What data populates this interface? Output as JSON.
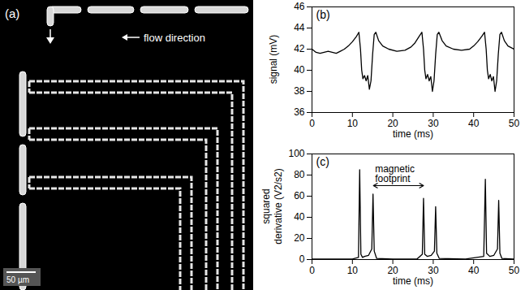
{
  "image": {
    "panel_label": "(a)",
    "annotations": [
      "flow direction",
      "50 µm"
    ]
  },
  "chart_data": [
    {
      "type": "line",
      "panel_label": "(b)",
      "x_label": "time (ms)",
      "y_label": "signal (mV)",
      "color": "#000000",
      "x": [
        0,
        1,
        2,
        3,
        4,
        5,
        6,
        7,
        8,
        9,
        10,
        11,
        11.6,
        12.0,
        12.3,
        12.6,
        13.0,
        13.4,
        13.8,
        14.2,
        14.6,
        15.0,
        15.4,
        15.8,
        16.5,
        17.5,
        19,
        21,
        23,
        24.5,
        25.5,
        26.5,
        27.2,
        27.6,
        27.9,
        28.2,
        28.6,
        29.0,
        29.4,
        29.8,
        30.2,
        30.6,
        31.0,
        31.4,
        32.2,
        33.2,
        35,
        37,
        39,
        40,
        41,
        42,
        42.7,
        43.1,
        43.4,
        43.7,
        44.1,
        44.5,
        44.9,
        45.3,
        45.7,
        46.1,
        46.5,
        46.9,
        47.6,
        48.5,
        50
      ],
      "values": [
        42.0,
        41.7,
        41.6,
        41.7,
        41.8,
        41.7,
        41.6,
        41.8,
        42.0,
        42.3,
        42.7,
        43.2,
        43.6,
        42.0,
        40.0,
        39.2,
        39.5,
        39.0,
        39.5,
        38.2,
        39.0,
        41.5,
        43.4,
        43.6,
        42.8,
        42.3,
        42.0,
        41.8,
        41.9,
        42.2,
        42.6,
        43.2,
        43.6,
        42.0,
        40.0,
        39.2,
        39.6,
        39.0,
        39.4,
        38.0,
        39.0,
        41.5,
        43.4,
        43.6,
        42.8,
        42.3,
        42.0,
        41.9,
        42.0,
        42.3,
        42.7,
        43.2,
        43.6,
        42.0,
        40.0,
        39.2,
        39.6,
        39.0,
        39.4,
        38.0,
        39.0,
        41.5,
        43.4,
        43.6,
        42.8,
        42.3,
        42.0
      ],
      "xlim": [
        0,
        50
      ],
      "ylim": [
        36,
        46
      ],
      "xticks": [
        0,
        10,
        20,
        30,
        40,
        50
      ],
      "yticks": [
        36,
        38,
        40,
        42,
        44,
        46
      ]
    },
    {
      "type": "line",
      "panel_label": "(c)",
      "x_label": "time (ms)",
      "y_label": "squared derivative (V2/s2)",
      "color": "#000000",
      "x": [
        0,
        10,
        11.5,
        11.8,
        12.1,
        12.5,
        13,
        14,
        14.8,
        15.1,
        15.4,
        16,
        20,
        26,
        27.3,
        27.6,
        27.9,
        28.5,
        29.5,
        30.3,
        30.6,
        30.9,
        31.5,
        38,
        42.5,
        42.9,
        43.2,
        44,
        45,
        45.9,
        46.2,
        46.5,
        47,
        50
      ],
      "values": [
        0.5,
        0.5,
        2,
        85,
        5,
        2,
        3,
        4,
        10,
        62,
        8,
        1,
        0.5,
        0.5,
        5,
        58,
        5,
        3,
        4,
        8,
        50,
        6,
        1,
        0.5,
        3,
        76,
        6,
        3,
        4,
        10,
        56,
        6,
        1,
        0.5
      ],
      "xlim": [
        0,
        50
      ],
      "ylim": [
        0,
        100
      ],
      "xticks": [
        0,
        10,
        20,
        30,
        40,
        50
      ],
      "yticks": [
        0,
        20,
        40,
        60,
        80,
        100
      ],
      "annotation": {
        "text": "magnetic footprint",
        "x_from": 15.2,
        "x_to": 27.6,
        "y": 70
      }
    }
  ]
}
